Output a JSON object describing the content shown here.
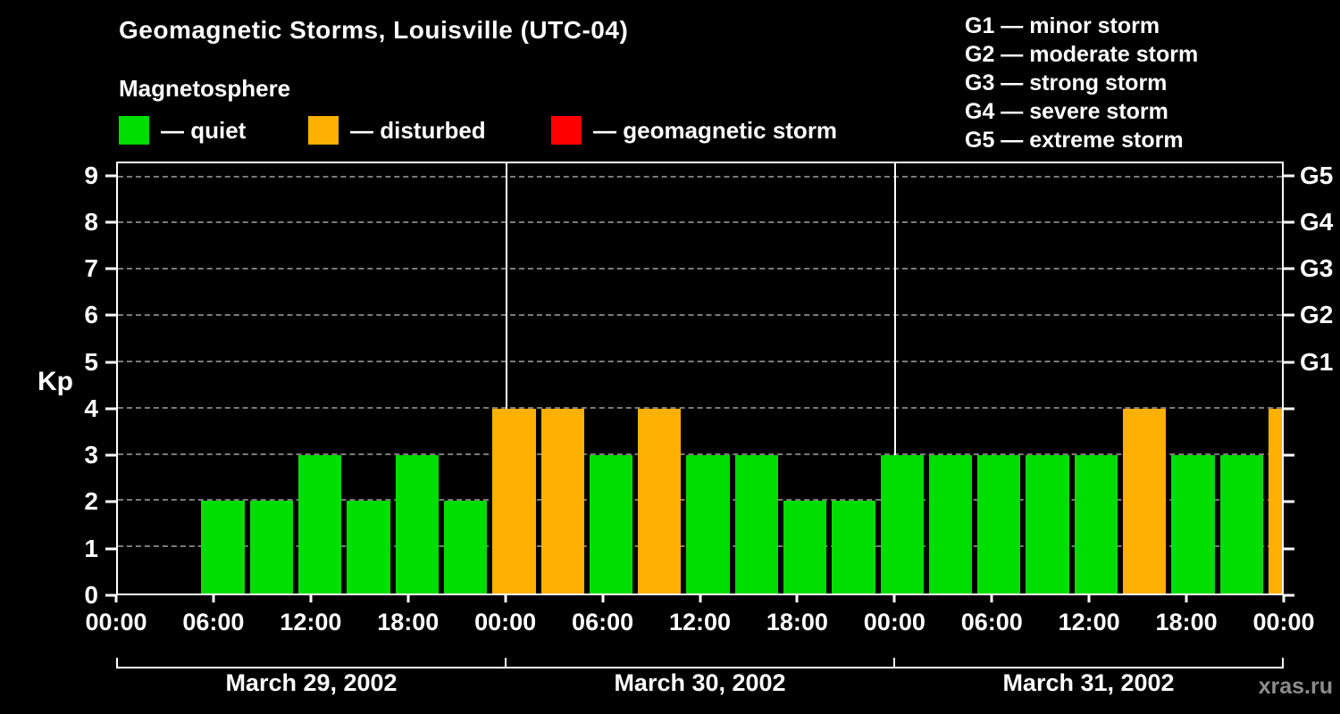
{
  "title": "Geomagnetic Storms, Louisville (UTC-04)",
  "subtitle": "Magnetosphere",
  "watermark": "xras.ru",
  "legend": {
    "items": [
      {
        "label": "— quiet",
        "status": "quiet",
        "color": "#00dd00"
      },
      {
        "label": "— disturbed",
        "status": "disturbed",
        "color": "#ffb000"
      },
      {
        "label": "— geomagnetic storm",
        "status": "storm",
        "color": "#ff0000"
      }
    ]
  },
  "g_scale_legend": [
    "G1 — minor storm",
    "G2 — moderate storm",
    "G3 — strong storm",
    "G4 — severe storm",
    "G5 — extreme storm"
  ],
  "chart_data": {
    "type": "bar",
    "title": "Geomagnetic Storms, Louisville (UTC-04)",
    "ylabel": "Kp",
    "ylim": [
      0,
      9.3
    ],
    "y_ticks": [
      0,
      1,
      2,
      3,
      4,
      5,
      6,
      7,
      8,
      9
    ],
    "grid": "dashed-horizontal",
    "x_total_hours": 72,
    "x_ticks": [
      {
        "hour": 0,
        "label": "00:00"
      },
      {
        "hour": 6,
        "label": "06:00"
      },
      {
        "hour": 12,
        "label": "12:00"
      },
      {
        "hour": 18,
        "label": "18:00"
      },
      {
        "hour": 24,
        "label": "00:00"
      },
      {
        "hour": 30,
        "label": "06:00"
      },
      {
        "hour": 36,
        "label": "12:00"
      },
      {
        "hour": 42,
        "label": "18:00"
      },
      {
        "hour": 48,
        "label": "00:00"
      },
      {
        "hour": 54,
        "label": "06:00"
      },
      {
        "hour": 60,
        "label": "12:00"
      },
      {
        "hour": 66,
        "label": "18:00"
      },
      {
        "hour": 72,
        "label": "00:00"
      }
    ],
    "right_axis": [
      {
        "kp": 5,
        "label": "G1"
      },
      {
        "kp": 6,
        "label": "G2"
      },
      {
        "kp": 7,
        "label": "G3"
      },
      {
        "kp": 8,
        "label": "G4"
      },
      {
        "kp": 9,
        "label": "G5"
      }
    ],
    "day_boundaries_hours": [
      24,
      48
    ],
    "days": [
      {
        "label": "March 29, 2002"
      },
      {
        "label": "March 30, 2002"
      },
      {
        "label": "March 31, 2002"
      }
    ],
    "status_colors": {
      "quiet": "#00dd00",
      "disturbed": "#ffb000",
      "storm": "#ff0000"
    },
    "bars": [
      {
        "start_hour": 5,
        "end_hour": 8,
        "kp": 2,
        "status": "quiet"
      },
      {
        "start_hour": 8,
        "end_hour": 11,
        "kp": 2,
        "status": "quiet"
      },
      {
        "start_hour": 11,
        "end_hour": 14,
        "kp": 3,
        "status": "quiet"
      },
      {
        "start_hour": 14,
        "end_hour": 17,
        "kp": 2,
        "status": "quiet"
      },
      {
        "start_hour": 17,
        "end_hour": 20,
        "kp": 3,
        "status": "quiet"
      },
      {
        "start_hour": 20,
        "end_hour": 23,
        "kp": 2,
        "status": "quiet"
      },
      {
        "start_hour": 23,
        "end_hour": 26,
        "kp": 4,
        "status": "disturbed"
      },
      {
        "start_hour": 26,
        "end_hour": 29,
        "kp": 4,
        "status": "disturbed"
      },
      {
        "start_hour": 29,
        "end_hour": 32,
        "kp": 3,
        "status": "quiet"
      },
      {
        "start_hour": 32,
        "end_hour": 35,
        "kp": 4,
        "status": "disturbed"
      },
      {
        "start_hour": 35,
        "end_hour": 38,
        "kp": 3,
        "status": "quiet"
      },
      {
        "start_hour": 38,
        "end_hour": 41,
        "kp": 3,
        "status": "quiet"
      },
      {
        "start_hour": 41,
        "end_hour": 44,
        "kp": 2,
        "status": "quiet"
      },
      {
        "start_hour": 44,
        "end_hour": 47,
        "kp": 2,
        "status": "quiet"
      },
      {
        "start_hour": 47,
        "end_hour": 50,
        "kp": 3,
        "status": "quiet"
      },
      {
        "start_hour": 50,
        "end_hour": 53,
        "kp": 3,
        "status": "quiet"
      },
      {
        "start_hour": 53,
        "end_hour": 56,
        "kp": 3,
        "status": "quiet"
      },
      {
        "start_hour": 56,
        "end_hour": 59,
        "kp": 3,
        "status": "quiet"
      },
      {
        "start_hour": 59,
        "end_hour": 62,
        "kp": 3,
        "status": "quiet"
      },
      {
        "start_hour": 62,
        "end_hour": 65,
        "kp": 4,
        "status": "disturbed"
      },
      {
        "start_hour": 65,
        "end_hour": 68,
        "kp": 3,
        "status": "quiet"
      },
      {
        "start_hour": 68,
        "end_hour": 71,
        "kp": 3,
        "status": "quiet"
      },
      {
        "start_hour": 71,
        "end_hour": 72,
        "kp": 4,
        "status": "disturbed",
        "clipped": true
      }
    ]
  }
}
